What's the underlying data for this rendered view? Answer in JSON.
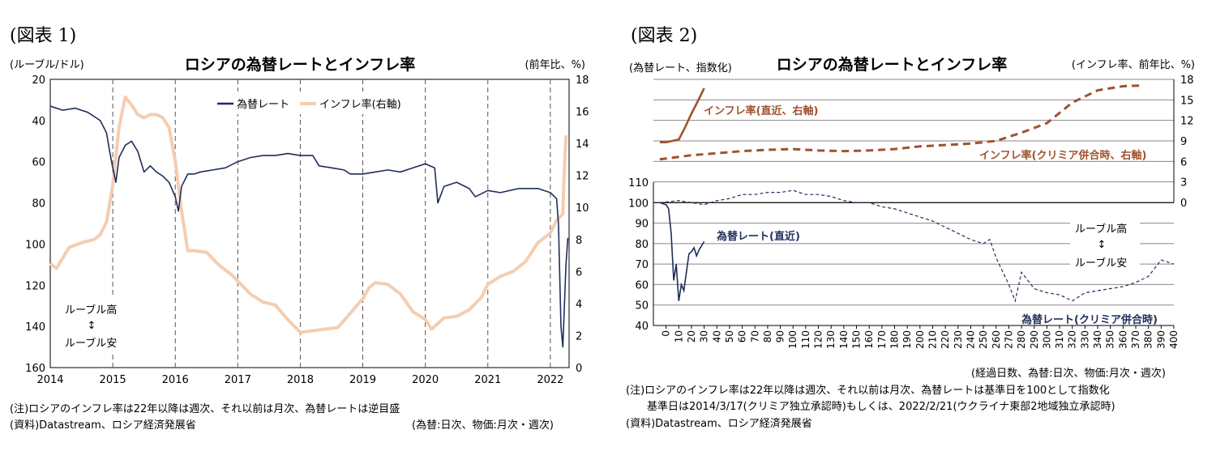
{
  "figure1": {
    "label": "(図表 1)",
    "chart_title": "ロシアの為替レートとインフレ率",
    "left_unit": "(ルーブル/ドル)",
    "right_unit": "(前年比、%)",
    "note": "(注)ロシアのインフレ率は22年以降は週次、それ以前は月次、為替レートは逆目盛",
    "source": "(資料)Datastream、ロシア経済発展省",
    "freq_note": "(為替:日次、物価:月次・週次)",
    "arrow_top": "ルーブル高",
    "arrow_mid": "↕",
    "arrow_bottom": "ルーブル安",
    "colors": {
      "fx": "#1f2d5a",
      "inflation": "#f5cdb0"
    }
  },
  "figure2": {
    "label": "(図表 2)",
    "chart_title": "ロシアの為替レートとインフレ率",
    "left_unit": "(為替レート、指数化)",
    "right_unit": "(インフレ率、前年比、%)",
    "x_unit": "(経過日数、為替:日次、物価:月次・週次)",
    "note1": "(注)ロシアのインフレ率は22年以降は週次、それ以前は月次、為替レートは基準日を100として指数化",
    "note2": "基準日は2014/3/17(クリミア独立承認時)もしくは、2022/2/21(ウクライナ東部2地域独立承認時)",
    "source": "(資料)Datastream、ロシア経済発展省",
    "arrow_top": "ルーブル高",
    "arrow_mid": "↕",
    "arrow_bottom": "ルーブル安",
    "colors": {
      "inflation": "#a0522d",
      "fx": "#1f2d5a"
    }
  },
  "chart_data": [
    {
      "type": "line",
      "title": "ロシアの為替レートとインフレ率",
      "x_ticks": [
        "2014",
        "2015",
        "2016",
        "2017",
        "2018",
        "2019",
        "2020",
        "2021",
        "2022"
      ],
      "y_left": {
        "label": "(ルーブル/ドル)",
        "range": [
          20,
          160
        ],
        "inverted": true,
        "ticks": [
          20,
          40,
          60,
          80,
          100,
          120,
          140,
          160
        ]
      },
      "y_right": {
        "label": "(前年比、%)",
        "range": [
          0,
          18
        ],
        "ticks": [
          0,
          2,
          4,
          6,
          8,
          10,
          12,
          14,
          16,
          18
        ]
      },
      "legend_position": "top-center",
      "grid": "vertical dashed at years",
      "series": [
        {
          "name": "為替レート",
          "axis": "left",
          "x": [
            2014.0,
            2014.2,
            2014.4,
            2014.6,
            2014.8,
            2014.9,
            2014.95,
            2015.0,
            2015.05,
            2015.1,
            2015.2,
            2015.3,
            2015.4,
            2015.5,
            2015.6,
            2015.7,
            2015.8,
            2015.9,
            2016.0,
            2016.05,
            2016.1,
            2016.2,
            2016.3,
            2016.4,
            2016.6,
            2016.8,
            2017.0,
            2017.2,
            2017.4,
            2017.6,
            2017.8,
            2018.0,
            2018.2,
            2018.3,
            2018.5,
            2018.7,
            2018.8,
            2019.0,
            2019.2,
            2019.4,
            2019.6,
            2019.8,
            2020.0,
            2020.15,
            2020.2,
            2020.3,
            2020.5,
            2020.7,
            2020.8,
            2021.0,
            2021.2,
            2021.5,
            2021.8,
            2022.0,
            2022.1,
            2022.13,
            2022.17,
            2022.2,
            2022.25,
            2022.28
          ],
          "values": [
            33,
            35,
            34,
            36,
            40,
            46,
            55,
            63,
            70,
            58,
            52,
            50,
            55,
            65,
            62,
            65,
            67,
            70,
            77,
            84,
            72,
            66,
            66,
            65,
            64,
            63,
            60,
            58,
            57,
            57,
            56,
            57,
            57,
            62,
            63,
            64,
            66,
            66,
            65,
            64,
            65,
            63,
            61,
            63,
            80,
            72,
            70,
            73,
            77,
            74,
            75,
            73,
            73,
            75,
            78,
            90,
            140,
            150,
            110,
            97
          ]
        },
        {
          "name": "インフレ率(右軸)",
          "axis": "right",
          "x": [
            2014.0,
            2014.1,
            2014.3,
            2014.5,
            2014.7,
            2014.8,
            2014.9,
            2015.0,
            2015.1,
            2015.2,
            2015.3,
            2015.4,
            2015.5,
            2015.6,
            2015.7,
            2015.8,
            2015.9,
            2016.0,
            2016.1,
            2016.2,
            2016.3,
            2016.5,
            2016.7,
            2016.9,
            2017.0,
            2017.2,
            2017.4,
            2017.6,
            2017.8,
            2018.0,
            2018.2,
            2018.4,
            2018.6,
            2018.8,
            2019.0,
            2019.1,
            2019.2,
            2019.4,
            2019.6,
            2019.8,
            2020.0,
            2020.1,
            2020.3,
            2020.5,
            2020.7,
            2020.9,
            2021.0,
            2021.2,
            2021.4,
            2021.6,
            2021.8,
            2022.0,
            2022.05,
            2022.1,
            2022.15,
            2022.2,
            2022.22,
            2022.25
          ],
          "values": [
            6.5,
            6.2,
            7.5,
            7.8,
            8.0,
            8.3,
            9.1,
            11.4,
            15.0,
            16.9,
            16.4,
            15.8,
            15.6,
            15.8,
            15.8,
            15.6,
            15.0,
            12.9,
            9.8,
            7.3,
            7.3,
            7.2,
            6.4,
            5.8,
            5.4,
            4.6,
            4.1,
            3.9,
            3.0,
            2.2,
            2.3,
            2.4,
            2.5,
            3.4,
            4.3,
            5.0,
            5.3,
            5.2,
            4.6,
            3.5,
            3.0,
            2.4,
            3.1,
            3.2,
            3.6,
            4.4,
            5.2,
            5.7,
            6.0,
            6.6,
            7.8,
            8.4,
            8.8,
            9.2,
            9.4,
            9.6,
            12.0,
            14.5
          ]
        }
      ]
    },
    {
      "type": "line",
      "title": "ロシアの為替レートとインフレ率",
      "x_label": "(経過日数、為替:日次、物価:月次・週次)",
      "x_range": [
        -10,
        400
      ],
      "x_ticks": [
        0,
        10,
        20,
        30,
        40,
        50,
        60,
        70,
        80,
        90,
        100,
        110,
        120,
        130,
        140,
        150,
        160,
        170,
        180,
        190,
        200,
        210,
        220,
        230,
        240,
        250,
        260,
        270,
        280,
        290,
        300,
        310,
        320,
        330,
        340,
        350,
        360,
        370,
        380,
        390,
        400
      ],
      "y_left": {
        "label": "(為替レート、指数化)",
        "range": [
          40,
          110
        ],
        "ticks": [
          40,
          50,
          60,
          70,
          80,
          90,
          100,
          110
        ]
      },
      "y_right": {
        "label": "(インフレ率、前年比、%)",
        "range": [
          0,
          18
        ],
        "ticks": [
          0,
          3,
          6,
          9,
          12,
          15,
          18
        ]
      },
      "series": [
        {
          "name": "インフレ率(直近、右軸)",
          "axis": "right",
          "style": "solid",
          "x": [
            -5,
            0,
            5,
            10,
            15,
            20,
            25,
            30
          ],
          "values": [
            8.8,
            8.8,
            9.0,
            9.2,
            11.0,
            13.0,
            14.8,
            16.7
          ]
        },
        {
          "name": "インフレ率(クリミア併合時、右軸)",
          "axis": "right",
          "style": "dashed",
          "x": [
            -5,
            20,
            40,
            60,
            80,
            100,
            120,
            140,
            160,
            180,
            200,
            220,
            240,
            260,
            280,
            300,
            320,
            340,
            360,
            375
          ],
          "values": [
            6.3,
            6.9,
            7.2,
            7.5,
            7.7,
            7.8,
            7.6,
            7.5,
            7.6,
            7.8,
            8.2,
            8.4,
            8.6,
            9.0,
            10.2,
            11.6,
            14.6,
            16.4,
            17.0,
            17.1
          ]
        },
        {
          "name": "為替レート(直近)",
          "axis": "left",
          "style": "solid",
          "x": [
            -5,
            0,
            2,
            4,
            6,
            8,
            10,
            12,
            14,
            16,
            18,
            20,
            22,
            24,
            26,
            28,
            30
          ],
          "values": [
            100,
            99,
            97,
            85,
            62,
            70,
            52,
            60,
            57,
            66,
            75,
            76,
            78,
            74,
            77,
            79,
            81
          ]
        },
        {
          "name": "為替レート(クリミア併合時)",
          "axis": "left",
          "style": "dashed",
          "x": [
            -5,
            10,
            20,
            30,
            40,
            50,
            60,
            70,
            80,
            90,
            100,
            110,
            120,
            130,
            140,
            150,
            160,
            170,
            180,
            190,
            200,
            210,
            220,
            230,
            240,
            250,
            255,
            260,
            270,
            275,
            280,
            290,
            300,
            310,
            320,
            330,
            340,
            350,
            360,
            370,
            380,
            390,
            400
          ],
          "values": [
            100,
            101,
            100,
            99,
            101,
            102,
            104,
            104,
            105,
            105,
            106,
            104,
            104,
            103,
            101,
            100,
            100,
            98,
            97,
            95,
            93,
            91,
            88,
            85,
            82,
            80,
            82,
            73,
            60,
            52,
            66,
            58,
            56,
            55,
            52,
            56,
            57,
            58,
            59,
            61,
            64,
            72,
            70
          ]
        }
      ]
    }
  ]
}
